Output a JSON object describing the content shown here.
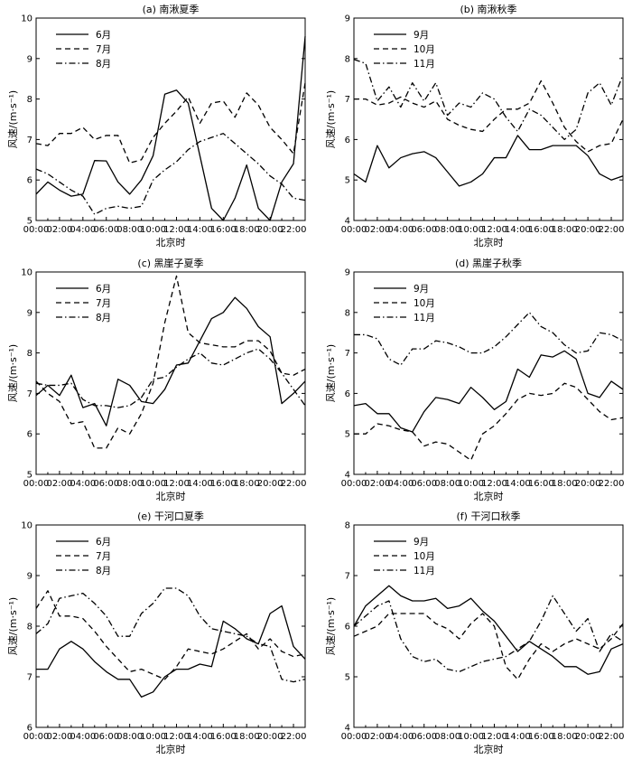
{
  "chart_data": [
    {
      "type": "line",
      "title": "(a) 南湫夏季",
      "xlabel": "北京时",
      "ylabel": "风速/(m·s⁻¹)",
      "ylim": [
        5,
        10
      ],
      "yticks": [
        "5",
        "6",
        "7",
        "8",
        "9",
        "10"
      ],
      "xticks": [
        "00:00",
        "02:00",
        "04:00",
        "06:00",
        "08:00",
        "10:00",
        "12:00",
        "14:00",
        "16:00",
        "18:00",
        "20:00",
        "22:00"
      ],
      "x": [
        "00:00",
        "01:00",
        "02:00",
        "03:00",
        "04:00",
        "05:00",
        "06:00",
        "07:00",
        "08:00",
        "09:00",
        "10:00",
        "11:00",
        "12:00",
        "13:00",
        "14:00",
        "15:00",
        "16:00",
        "17:00",
        "18:00",
        "19:00",
        "20:00",
        "21:00",
        "22:00",
        "23:00"
      ],
      "legend_position": "upper-left",
      "series": [
        {
          "name": "6月",
          "style": "solid",
          "values": [
            5.65,
            5.95,
            5.75,
            5.6,
            5.65,
            6.48,
            6.47,
            5.95,
            5.65,
            6.0,
            6.6,
            8.12,
            8.22,
            7.9,
            6.6,
            5.3,
            5.0,
            5.55,
            6.37,
            5.3,
            5.0,
            5.95,
            6.4,
            9.55
          ]
        },
        {
          "name": "7月",
          "style": "dashed",
          "values": [
            6.9,
            6.85,
            7.15,
            7.15,
            7.3,
            7.0,
            7.1,
            7.1,
            6.42,
            6.5,
            7.05,
            7.4,
            7.7,
            8.05,
            7.4,
            7.9,
            7.95,
            7.55,
            8.15,
            7.85,
            7.3,
            7.0,
            6.65,
            8.4
          ]
        },
        {
          "name": "8月",
          "style": "dashdot",
          "values": [
            6.27,
            6.15,
            5.95,
            5.75,
            5.6,
            5.15,
            5.3,
            5.35,
            5.3,
            5.35,
            6.0,
            6.25,
            6.45,
            6.75,
            6.95,
            7.05,
            7.15,
            6.9,
            6.65,
            6.4,
            6.1,
            5.9,
            5.55,
            5.5
          ]
        }
      ]
    },
    {
      "type": "line",
      "title": "(b) 南湫秋季",
      "xlabel": "北京时",
      "ylabel": "风速/(m·s⁻¹)",
      "ylim": [
        4,
        9
      ],
      "yticks": [
        "4",
        "5",
        "6",
        "7",
        "8",
        "9"
      ],
      "xticks": [
        "00:00",
        "02:00",
        "04:00",
        "06:00",
        "08:00",
        "10:00",
        "12:00",
        "14:00",
        "16:00",
        "18:00",
        "20:00",
        "22:00"
      ],
      "x": [
        "00:00",
        "01:00",
        "02:00",
        "03:00",
        "04:00",
        "05:00",
        "06:00",
        "07:00",
        "08:00",
        "09:00",
        "10:00",
        "11:00",
        "12:00",
        "13:00",
        "14:00",
        "15:00",
        "16:00",
        "17:00",
        "18:00",
        "19:00",
        "20:00",
        "21:00",
        "22:00",
        "23:00"
      ],
      "legend_position": "upper-left",
      "series": [
        {
          "name": "9月",
          "style": "solid",
          "values": [
            5.15,
            4.95,
            5.85,
            5.3,
            5.55,
            5.65,
            5.7,
            5.55,
            5.2,
            4.85,
            4.95,
            5.15,
            5.55,
            5.55,
            6.1,
            5.75,
            5.75,
            5.85,
            5.85,
            5.85,
            5.6,
            5.15,
            5.0,
            5.1
          ]
        },
        {
          "name": "10月",
          "style": "dashed",
          "values": [
            7.0,
            7.0,
            6.85,
            6.9,
            7.05,
            6.9,
            6.8,
            6.95,
            6.5,
            6.35,
            6.25,
            6.2,
            6.5,
            6.75,
            6.75,
            6.9,
            7.45,
            6.9,
            6.3,
            5.95,
            5.7,
            5.85,
            5.9,
            6.5
          ]
        },
        {
          "name": "11月",
          "style": "dashdot",
          "values": [
            7.98,
            7.88,
            6.95,
            7.3,
            6.8,
            7.4,
            6.95,
            7.4,
            6.6,
            6.9,
            6.8,
            7.15,
            7.0,
            6.55,
            6.2,
            6.75,
            6.6,
            6.3,
            6.0,
            6.25,
            7.15,
            7.4,
            6.85,
            7.6
          ]
        }
      ]
    },
    {
      "type": "line",
      "title": "(c) 黑崖子夏季",
      "xlabel": "北京时",
      "ylabel": "风速/(m·s⁻¹)",
      "ylim": [
        5,
        10
      ],
      "yticks": [
        "5",
        "6",
        "7",
        "8",
        "9",
        "10"
      ],
      "xticks": [
        "00:00",
        "02:00",
        "04:00",
        "06:00",
        "08:00",
        "10:00",
        "12:00",
        "14:00",
        "16:00",
        "18:00",
        "20:00",
        "22:00"
      ],
      "x": [
        "00:00",
        "01:00",
        "02:00",
        "03:00",
        "04:00",
        "05:00",
        "06:00",
        "07:00",
        "08:00",
        "09:00",
        "10:00",
        "11:00",
        "12:00",
        "13:00",
        "14:00",
        "15:00",
        "16:00",
        "17:00",
        "18:00",
        "19:00",
        "20:00",
        "21:00",
        "22:00",
        "23:00"
      ],
      "legend_position": "upper-left",
      "series": [
        {
          "name": "6月",
          "style": "solid",
          "values": [
            6.95,
            7.2,
            6.95,
            7.45,
            6.65,
            6.75,
            6.2,
            7.35,
            7.2,
            6.8,
            6.75,
            7.1,
            7.7,
            7.75,
            8.3,
            8.85,
            9.0,
            9.37,
            9.1,
            8.65,
            8.4,
            6.75,
            7.0,
            7.3
          ]
        },
        {
          "name": "7月",
          "style": "dashed",
          "values": [
            7.3,
            7.0,
            6.8,
            6.25,
            6.3,
            5.65,
            5.65,
            6.15,
            6.0,
            6.5,
            7.25,
            8.75,
            9.9,
            8.5,
            8.25,
            8.2,
            8.15,
            8.15,
            8.3,
            8.3,
            8.05,
            7.5,
            7.45,
            7.6
          ]
        },
        {
          "name": "8月",
          "style": "dashdot",
          "values": [
            7.25,
            7.2,
            7.2,
            7.25,
            6.85,
            6.7,
            6.7,
            6.65,
            6.7,
            6.9,
            7.35,
            7.4,
            7.65,
            7.85,
            8.0,
            7.75,
            7.7,
            7.85,
            8.0,
            8.1,
            7.85,
            7.5,
            7.1,
            6.7
          ]
        }
      ]
    },
    {
      "type": "line",
      "title": "(d) 黑崖子秋季",
      "xlabel": "北京时",
      "ylabel": "风速/(m·s⁻¹)",
      "ylim": [
        4,
        9
      ],
      "yticks": [
        "4",
        "5",
        "6",
        "7",
        "8",
        "9"
      ],
      "xticks": [
        "00:00",
        "02:00",
        "04:00",
        "06:00",
        "08:00",
        "10:00",
        "12:00",
        "14:00",
        "16:00",
        "18:00",
        "20:00",
        "22:00"
      ],
      "x": [
        "00:00",
        "01:00",
        "02:00",
        "03:00",
        "04:00",
        "05:00",
        "06:00",
        "07:00",
        "08:00",
        "09:00",
        "10:00",
        "11:00",
        "12:00",
        "13:00",
        "14:00",
        "15:00",
        "16:00",
        "17:00",
        "18:00",
        "19:00",
        "20:00",
        "21:00",
        "22:00",
        "23:00"
      ],
      "legend_position": "upper-left",
      "series": [
        {
          "name": "9月",
          "style": "solid",
          "values": [
            5.7,
            5.75,
            5.5,
            5.5,
            5.15,
            5.05,
            5.55,
            5.9,
            5.85,
            5.75,
            6.15,
            5.9,
            5.6,
            5.8,
            6.6,
            6.4,
            6.95,
            6.9,
            7.05,
            6.85,
            6.0,
            5.9,
            6.3,
            6.1
          ]
        },
        {
          "name": "10月",
          "style": "dashed",
          "values": [
            5.0,
            5.0,
            5.25,
            5.2,
            5.1,
            5.05,
            4.7,
            4.8,
            4.75,
            4.55,
            4.35,
            5.0,
            5.2,
            5.5,
            5.85,
            6.0,
            5.95,
            6.0,
            6.25,
            6.15,
            5.85,
            5.55,
            5.35,
            5.4
          ]
        },
        {
          "name": "11月",
          "style": "dashdot",
          "values": [
            7.45,
            7.45,
            7.35,
            6.85,
            6.7,
            7.1,
            7.1,
            7.3,
            7.25,
            7.15,
            7.0,
            7.0,
            7.15,
            7.4,
            7.7,
            8.0,
            7.65,
            7.5,
            7.2,
            7.0,
            7.05,
            7.5,
            7.45,
            7.3
          ]
        }
      ]
    },
    {
      "type": "line",
      "title": "(e) 干河口夏季",
      "xlabel": "北京时",
      "ylabel": "风速/(m·s⁻¹)",
      "ylim": [
        6,
        10
      ],
      "yticks": [
        "6",
        "7",
        "8",
        "9",
        "10"
      ],
      "xticks": [
        "00:00",
        "02:00",
        "04:00",
        "06:00",
        "08:00",
        "10:00",
        "12:00",
        "14:00",
        "16:00",
        "18:00",
        "20:00",
        "22:00"
      ],
      "x": [
        "00:00",
        "01:00",
        "02:00",
        "03:00",
        "04:00",
        "05:00",
        "06:00",
        "07:00",
        "08:00",
        "09:00",
        "10:00",
        "11:00",
        "12:00",
        "13:00",
        "14:00",
        "15:00",
        "16:00",
        "17:00",
        "18:00",
        "19:00",
        "20:00",
        "21:00",
        "22:00",
        "23:00"
      ],
      "legend_position": "upper-left",
      "series": [
        {
          "name": "6月",
          "style": "solid",
          "values": [
            7.15,
            7.15,
            7.55,
            7.7,
            7.55,
            7.3,
            7.1,
            6.95,
            6.95,
            6.6,
            6.7,
            7.0,
            7.15,
            7.15,
            7.25,
            7.2,
            8.1,
            7.95,
            7.75,
            7.65,
            8.25,
            8.4,
            7.6,
            7.35
          ]
        },
        {
          "name": "7月",
          "style": "dashed",
          "values": [
            8.35,
            8.7,
            8.2,
            8.2,
            8.15,
            7.9,
            7.6,
            7.35,
            7.1,
            7.15,
            7.05,
            6.95,
            7.2,
            7.55,
            7.5,
            7.45,
            7.55,
            7.7,
            7.85,
            7.55,
            7.75,
            7.5,
            7.4,
            7.45
          ]
        },
        {
          "name": "8月",
          "style": "dashdot",
          "values": [
            7.85,
            8.05,
            8.55,
            8.6,
            8.65,
            8.45,
            8.2,
            7.8,
            7.8,
            8.25,
            8.45,
            8.75,
            8.75,
            8.6,
            8.2,
            7.95,
            7.9,
            7.85,
            7.8,
            7.65,
            7.6,
            6.95,
            6.9,
            6.95
          ]
        }
      ]
    },
    {
      "type": "line",
      "title": "(f) 干河口秋季",
      "xlabel": "北京时",
      "ylabel": "风速/(m·s⁻¹)",
      "ylim": [
        4,
        8
      ],
      "yticks": [
        "4",
        "5",
        "6",
        "7",
        "8"
      ],
      "xticks": [
        "00:00",
        "02:00",
        "04:00",
        "06:00",
        "08:00",
        "10:00",
        "12:00",
        "14:00",
        "16:00",
        "18:00",
        "20:00",
        "22:00"
      ],
      "x": [
        "00:00",
        "01:00",
        "02:00",
        "03:00",
        "04:00",
        "05:00",
        "06:00",
        "07:00",
        "08:00",
        "09:00",
        "10:00",
        "11:00",
        "12:00",
        "13:00",
        "14:00",
        "15:00",
        "16:00",
        "17:00",
        "18:00",
        "19:00",
        "20:00",
        "21:00",
        "22:00",
        "23:00"
      ],
      "legend_position": "upper-left",
      "series": [
        {
          "name": "9月",
          "style": "solid",
          "values": [
            6.0,
            6.4,
            6.6,
            6.8,
            6.6,
            6.5,
            6.5,
            6.55,
            6.35,
            6.4,
            6.55,
            6.3,
            6.1,
            5.8,
            5.5,
            5.7,
            5.55,
            5.4,
            5.2,
            5.2,
            5.05,
            5.1,
            5.55,
            5.65
          ]
        },
        {
          "name": "10月",
          "style": "dashed",
          "values": [
            5.8,
            5.9,
            6.0,
            6.25,
            6.25,
            6.25,
            6.25,
            6.05,
            5.95,
            5.75,
            6.05,
            6.25,
            6.0,
            5.2,
            4.95,
            5.35,
            5.65,
            5.5,
            5.65,
            5.75,
            5.65,
            5.55,
            5.75,
            6.05
          ]
        },
        {
          "name": "11月",
          "style": "dashdot",
          "values": [
            6.0,
            6.2,
            6.4,
            6.5,
            5.75,
            5.4,
            5.3,
            5.35,
            5.15,
            5.1,
            5.2,
            5.3,
            5.35,
            5.4,
            5.55,
            5.7,
            6.1,
            6.6,
            6.25,
            5.9,
            6.15,
            5.5,
            5.85,
            5.7
          ]
        }
      ]
    }
  ]
}
